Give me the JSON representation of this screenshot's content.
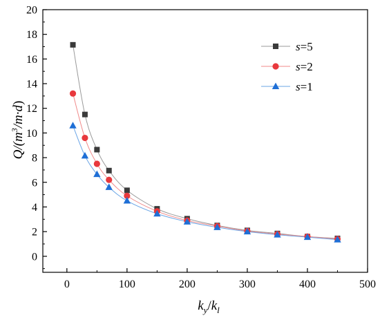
{
  "chart_data": {
    "type": "line",
    "xlabel": {
      "main": "k",
      "sub1": "y",
      "sep": "/",
      "main2": "k",
      "sub2": "l"
    },
    "ylabel": {
      "pre": "Q/(m",
      "sup": "3",
      "post": "/m·d",
      "close": ")"
    },
    "xlim": [
      -40,
      500
    ],
    "ylim": [
      -1.3,
      20
    ],
    "x_ticks": [
      0,
      100,
      200,
      300,
      400,
      500
    ],
    "y_ticks": [
      0,
      2,
      4,
      6,
      8,
      10,
      12,
      14,
      16,
      18,
      20
    ],
    "x": [
      10,
      30,
      50,
      70,
      100,
      150,
      200,
      250,
      300,
      350,
      400,
      450
    ],
    "legend_position": "top-right",
    "grid": false,
    "series": [
      {
        "name": "s=5",
        "var": "s",
        "value": "5",
        "marker": "square",
        "color": "#3a3a3a",
        "line_color": "#9a9a9a",
        "values": [
          17.15,
          11.5,
          8.65,
          6.95,
          5.35,
          3.85,
          3.05,
          2.5,
          2.1,
          1.85,
          1.6,
          1.45
        ]
      },
      {
        "name": "s=2",
        "var": "s",
        "value": "2",
        "marker": "circle",
        "color": "#e8383d",
        "line_color": "#f08a8a",
        "values": [
          13.2,
          9.6,
          7.5,
          6.2,
          4.9,
          3.65,
          2.9,
          2.45,
          2.05,
          1.8,
          1.6,
          1.4
        ]
      },
      {
        "name": "s=1",
        "var": "s",
        "value": "1",
        "marker": "triangle",
        "color": "#1f6fd6",
        "line_color": "#6aa5e6",
        "values": [
          10.6,
          8.15,
          6.65,
          5.6,
          4.5,
          3.45,
          2.8,
          2.35,
          2.0,
          1.75,
          1.55,
          1.35
        ]
      }
    ]
  }
}
